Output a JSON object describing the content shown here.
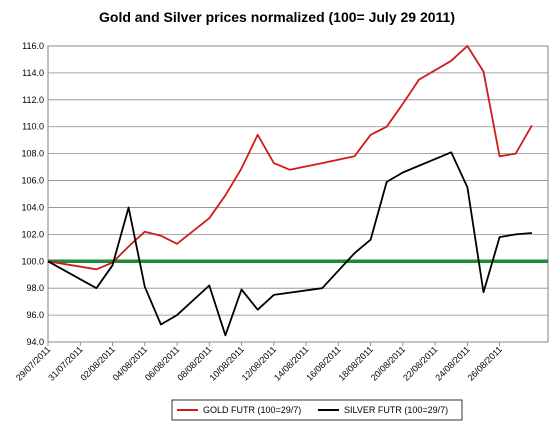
{
  "chart_data": {
    "type": "line",
    "title": "Gold and Silver prices normalized (100= July 29 2011)",
    "xlabel": "",
    "ylabel": "",
    "ylim": [
      94.0,
      116.0
    ],
    "y_ticks": [
      "94.0",
      "96.0",
      "98.0",
      "100.0",
      "102.0",
      "104.0",
      "106.0",
      "108.0",
      "110.0",
      "112.0",
      "114.0",
      "116.0"
    ],
    "x_tick_labels": [
      "29/07/2011",
      "31/07/2011",
      "02/08/2011",
      "04/08/2011",
      "06/08/2011",
      "08/08/2011",
      "10/08/2011",
      "12/08/2011",
      "14/08/2011",
      "16/08/2011",
      "18/08/2011",
      "20/08/2011",
      "22/08/2011",
      "24/08/2011",
      "26/08/2011"
    ],
    "x_range": [
      "2011-07-29",
      "2011-08-29"
    ],
    "grid": "horizontal",
    "legend_position": "bottom",
    "reference_line": {
      "value": 100.0,
      "color": "#1e8a3a"
    },
    "series": [
      {
        "name": "GOLD  FUTR (100=29/7)",
        "color": "#d11a1a",
        "points": [
          [
            "2011-07-29",
            100.0
          ],
          [
            "2011-08-01",
            99.4
          ],
          [
            "2011-08-02",
            99.9
          ],
          [
            "2011-08-03",
            101.1
          ],
          [
            "2011-08-04",
            102.2
          ],
          [
            "2011-08-05",
            101.9
          ],
          [
            "2011-08-06",
            101.3
          ],
          [
            "2011-08-08",
            103.2
          ],
          [
            "2011-08-09",
            104.9
          ],
          [
            "2011-08-10",
            106.9
          ],
          [
            "2011-08-11",
            109.4
          ],
          [
            "2011-08-12",
            107.3
          ],
          [
            "2011-08-13",
            106.8
          ],
          [
            "2011-08-15",
            107.3
          ],
          [
            "2011-08-17",
            107.8
          ],
          [
            "2011-08-18",
            109.4
          ],
          [
            "2011-08-19",
            110.0
          ],
          [
            "2011-08-20",
            111.7
          ],
          [
            "2011-08-21",
            113.5
          ],
          [
            "2011-08-23",
            114.9
          ],
          [
            "2011-08-24",
            116.0
          ],
          [
            "2011-08-25",
            114.1
          ],
          [
            "2011-08-26",
            107.8
          ],
          [
            "2011-08-27",
            108.0
          ],
          [
            "2011-08-28",
            110.1
          ]
        ]
      },
      {
        "name": "SILVER  FUTR (100=29/7)",
        "color": "#000000",
        "points": [
          [
            "2011-07-29",
            100.0
          ],
          [
            "2011-08-01",
            98.0
          ],
          [
            "2011-08-02",
            99.7
          ],
          [
            "2011-08-03",
            104.0
          ],
          [
            "2011-08-04",
            98.1
          ],
          [
            "2011-08-05",
            95.3
          ],
          [
            "2011-08-06",
            96.0
          ],
          [
            "2011-08-08",
            98.2
          ],
          [
            "2011-08-09",
            94.5
          ],
          [
            "2011-08-10",
            97.9
          ],
          [
            "2011-08-11",
            96.4
          ],
          [
            "2011-08-12",
            97.5
          ],
          [
            "2011-08-15",
            98.0
          ],
          [
            "2011-08-17",
            100.6
          ],
          [
            "2011-08-18",
            101.6
          ],
          [
            "2011-08-19",
            105.9
          ],
          [
            "2011-08-20",
            106.6
          ],
          [
            "2011-08-23",
            108.1
          ],
          [
            "2011-08-24",
            105.5
          ],
          [
            "2011-08-25",
            97.7
          ],
          [
            "2011-08-26",
            101.8
          ],
          [
            "2011-08-27",
            102.0
          ],
          [
            "2011-08-28",
            102.1
          ]
        ]
      }
    ]
  }
}
